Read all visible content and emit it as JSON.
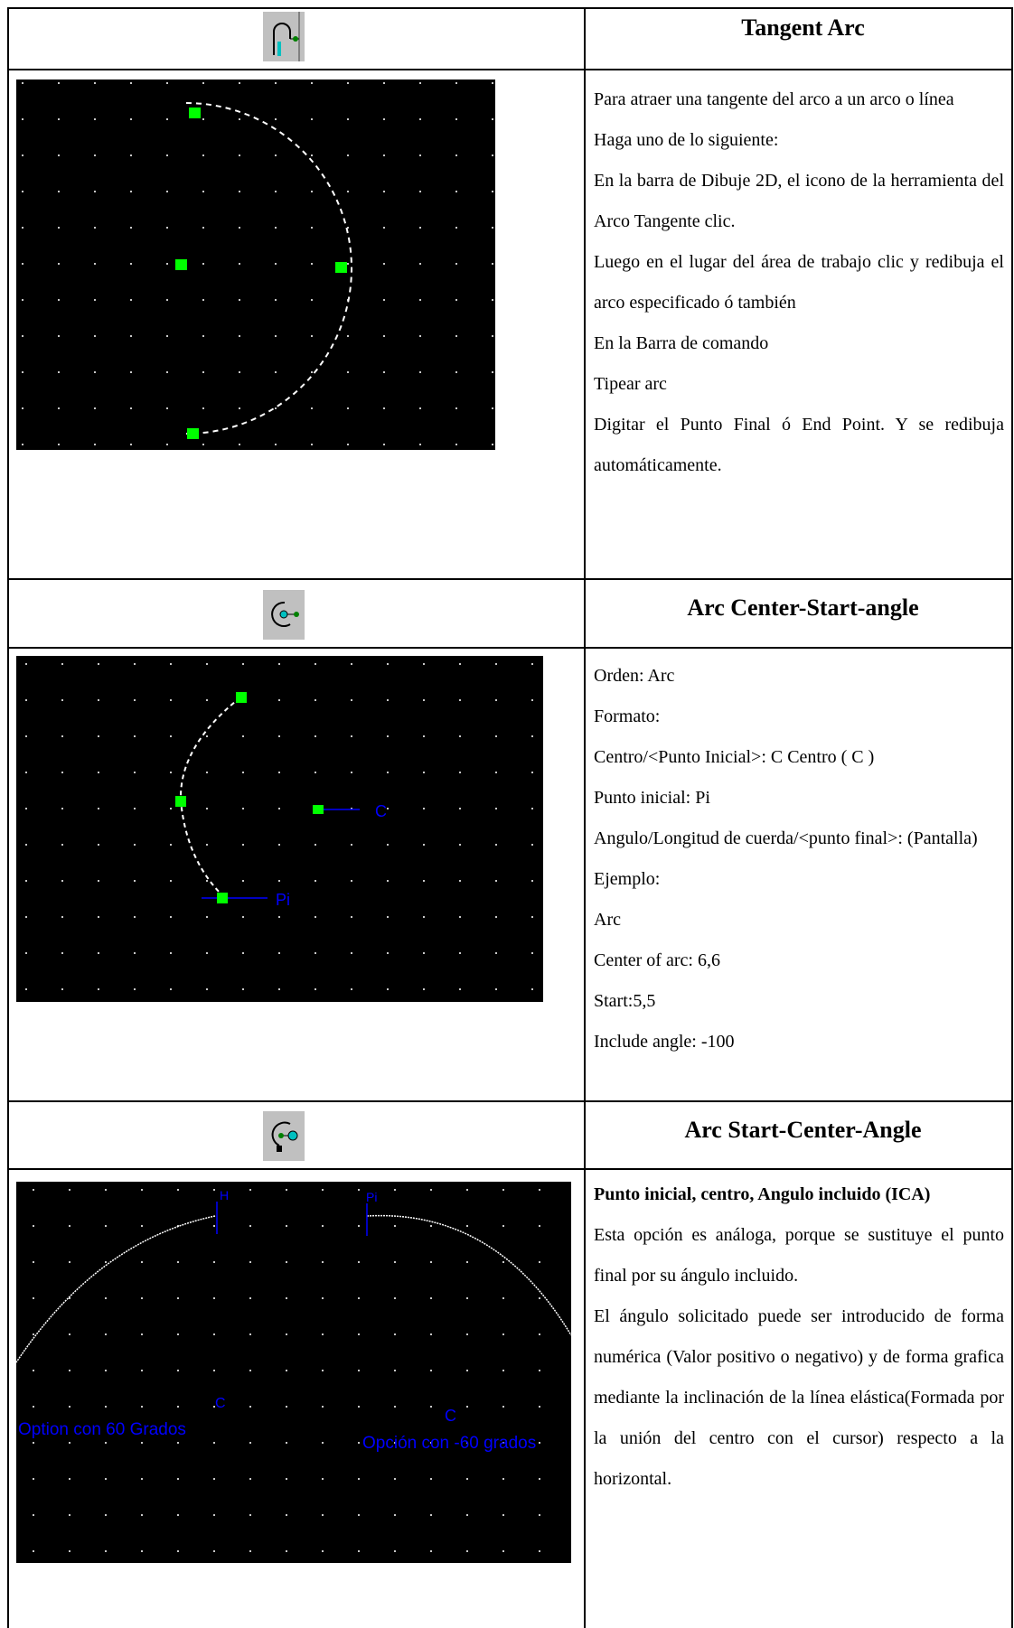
{
  "sections": [
    {
      "title": "Tangent Arc",
      "icon": "tangent-arc-icon",
      "paragraphs": [
        "Para atraer una tangente del arco a un arco o línea",
        "Haga uno de lo siguiente:",
        "En la barra de Dibuje 2D, el icono de la herramienta del Arco Tangente clic.",
        "Luego en el lugar del área de trabajo clic y redibuja el arco especificado ó también",
        "En la Barra de comando",
        "Tipear arc",
        "Digitar el Punto Final ó End Point. Y se redibuja automáticamente."
      ]
    },
    {
      "title": "Arc Center-Start-angle",
      "icon": "arc-center-start-angle-icon",
      "paragraphs": [
        "Orden: Arc",
        "Formato:",
        "Centro/<Punto Inicial>: C Centro ( C )",
        "Punto inicial: Pi",
        "Angulo/Longitud de cuerda/<punto final>: (Pantalla)",
        "Ejemplo:",
        "Arc",
        "Center of arc: 6,6",
        "Start:5,5",
        "Include angle: -100"
      ],
      "screenshot_labels": {
        "center": "C",
        "start": "Pi"
      }
    },
    {
      "title": "Arc Start-Center-Angle",
      "icon": "arc-start-center-angle-icon",
      "heading": "Punto inicial, centro, Angulo incluido (ICA)",
      "paragraphs": [
        "Esta opción es análoga, porque se sustituye el punto final por su ángulo incluido.",
        "El ángulo solicitado puede ser introducido de forma numérica (Valor positivo o negativo) y de forma grafica mediante la inclinación de la línea elástica(Formada por la unión del centro con el cursor) respecto a la horizontal."
      ],
      "screenshot_labels": {
        "left_start": "H",
        "right_start": "Pi",
        "left_center": "C",
        "right_center": "C",
        "left_caption": "Option con 60 Grados",
        "right_caption": "Opción con -60 grados"
      }
    }
  ],
  "colors": {
    "canvas": "#000000",
    "grip": "#00ff00",
    "annotation": "#0000ff",
    "arc": "#ffffff",
    "icon_bg": "#c0c0c0"
  }
}
